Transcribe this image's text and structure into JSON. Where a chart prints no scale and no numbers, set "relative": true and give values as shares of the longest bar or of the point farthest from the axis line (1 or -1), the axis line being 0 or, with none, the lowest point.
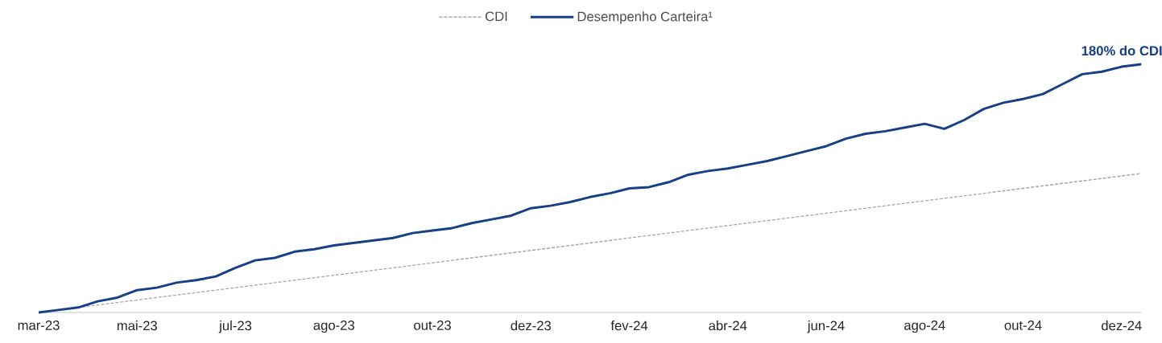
{
  "chart_data": {
    "type": "line",
    "relative": true,
    "categories": [
      "mar-23",
      null,
      null,
      null,
      null,
      "mai-23",
      null,
      null,
      null,
      null,
      "jul-23",
      null,
      null,
      null,
      null,
      "ago-23",
      null,
      null,
      null,
      null,
      "out-23",
      null,
      null,
      null,
      null,
      "dez-23",
      null,
      null,
      null,
      null,
      "fev-24",
      null,
      null,
      null,
      null,
      "abr-24",
      null,
      null,
      null,
      null,
      "jun-24",
      null,
      null,
      null,
      null,
      "ago-24",
      null,
      null,
      null,
      null,
      "out-24",
      null,
      null,
      null,
      null,
      "dez-24",
      null
    ],
    "series": [
      {
        "name": "CDI",
        "color": "#a6a6a6",
        "line_style": "dashed",
        "values": [
          0,
          0.01,
          0.02,
          0.03,
          0.04,
          0.05,
          0.06,
          0.07,
          0.08,
          0.09,
          0.1,
          0.11,
          0.12,
          0.13,
          0.14,
          0.15,
          0.16,
          0.17,
          0.18,
          0.19,
          0.2,
          0.21,
          0.22,
          0.23,
          0.24,
          0.25,
          0.26,
          0.27,
          0.28,
          0.29,
          0.3,
          0.31,
          0.32,
          0.33,
          0.34,
          0.35,
          0.36,
          0.37,
          0.38,
          0.39,
          0.4,
          0.41,
          0.42,
          0.43,
          0.44,
          0.45,
          0.46,
          0.47,
          0.48,
          0.49,
          0.5,
          0.51,
          0.52,
          0.53,
          0.54,
          0.55,
          0.56
        ]
      },
      {
        "name": "Desempenho Carteira¹",
        "color": "#163f87",
        "line_style": "solid",
        "values": [
          0,
          0.01,
          0.02,
          0.045,
          0.06,
          0.09,
          0.1,
          0.12,
          0.13,
          0.145,
          0.18,
          0.21,
          0.22,
          0.245,
          0.255,
          0.27,
          0.28,
          0.29,
          0.3,
          0.32,
          0.33,
          0.34,
          0.36,
          0.375,
          0.39,
          0.42,
          0.43,
          0.445,
          0.465,
          0.48,
          0.5,
          0.505,
          0.525,
          0.555,
          0.57,
          0.58,
          0.595,
          0.61,
          0.63,
          0.65,
          0.67,
          0.7,
          0.72,
          0.73,
          0.745,
          0.76,
          0.74,
          0.775,
          0.82,
          0.845,
          0.86,
          0.88,
          0.92,
          0.96,
          0.97,
          0.99,
          1.0
        ]
      }
    ],
    "annotations": [
      {
        "text": "180% do CDI",
        "y": 1.0
      }
    ],
    "legend": "top",
    "grid": false,
    "marker": "none"
  }
}
